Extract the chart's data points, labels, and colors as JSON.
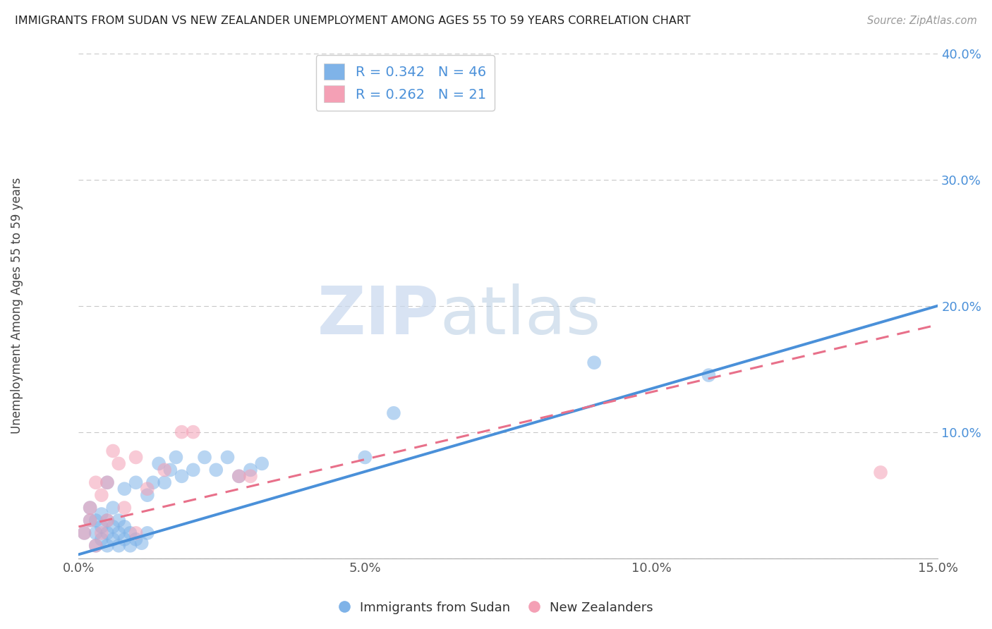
{
  "title": "IMMIGRANTS FROM SUDAN VS NEW ZEALANDER UNEMPLOYMENT AMONG AGES 55 TO 59 YEARS CORRELATION CHART",
  "source": "Source: ZipAtlas.com",
  "ylabel": "Unemployment Among Ages 55 to 59 years",
  "xlim": [
    0.0,
    0.15
  ],
  "ylim": [
    0.0,
    0.4
  ],
  "xticks": [
    0.0,
    0.05,
    0.1,
    0.15
  ],
  "xticklabels": [
    "0.0%",
    "5.0%",
    "10.0%",
    "15.0%"
  ],
  "yticks": [
    0.0,
    0.1,
    0.2,
    0.3,
    0.4
  ],
  "yticklabels": [
    "",
    "10.0%",
    "20.0%",
    "30.0%",
    "40.0%"
  ],
  "legend_labels": [
    "Immigrants from Sudan",
    "New Zealanders"
  ],
  "blue_color": "#7fb3e8",
  "pink_color": "#f4a0b5",
  "blue_line_color": "#4a90d9",
  "pink_line_color": "#e8708a",
  "watermark_zip": "ZIP",
  "watermark_atlas": "atlas",
  "blue_scatter_x": [
    0.001,
    0.002,
    0.002,
    0.003,
    0.003,
    0.003,
    0.004,
    0.004,
    0.004,
    0.005,
    0.005,
    0.005,
    0.005,
    0.006,
    0.006,
    0.006,
    0.007,
    0.007,
    0.007,
    0.008,
    0.008,
    0.008,
    0.009,
    0.009,
    0.01,
    0.01,
    0.011,
    0.012,
    0.012,
    0.013,
    0.014,
    0.015,
    0.016,
    0.017,
    0.018,
    0.02,
    0.022,
    0.024,
    0.026,
    0.028,
    0.03,
    0.032,
    0.05,
    0.055,
    0.09,
    0.11
  ],
  "blue_scatter_y": [
    0.02,
    0.03,
    0.04,
    0.01,
    0.02,
    0.03,
    0.015,
    0.025,
    0.035,
    0.01,
    0.02,
    0.03,
    0.06,
    0.015,
    0.025,
    0.04,
    0.01,
    0.02,
    0.03,
    0.015,
    0.025,
    0.055,
    0.01,
    0.02,
    0.015,
    0.06,
    0.012,
    0.02,
    0.05,
    0.06,
    0.075,
    0.06,
    0.07,
    0.08,
    0.065,
    0.07,
    0.08,
    0.07,
    0.08,
    0.065,
    0.07,
    0.075,
    0.08,
    0.115,
    0.155,
    0.145
  ],
  "pink_scatter_x": [
    0.001,
    0.002,
    0.002,
    0.003,
    0.003,
    0.004,
    0.004,
    0.005,
    0.005,
    0.006,
    0.007,
    0.008,
    0.01,
    0.01,
    0.012,
    0.015,
    0.018,
    0.02,
    0.028,
    0.03,
    0.14
  ],
  "pink_scatter_y": [
    0.02,
    0.03,
    0.04,
    0.01,
    0.06,
    0.02,
    0.05,
    0.03,
    0.06,
    0.085,
    0.075,
    0.04,
    0.02,
    0.08,
    0.055,
    0.07,
    0.1,
    0.1,
    0.065,
    0.065,
    0.068
  ],
  "blue_line_x0": 0.0,
  "blue_line_y0": 0.003,
  "blue_line_x1": 0.15,
  "blue_line_y1": 0.2,
  "pink_line_x0": 0.0,
  "pink_line_y0": 0.025,
  "pink_line_x1": 0.15,
  "pink_line_y1": 0.185
}
